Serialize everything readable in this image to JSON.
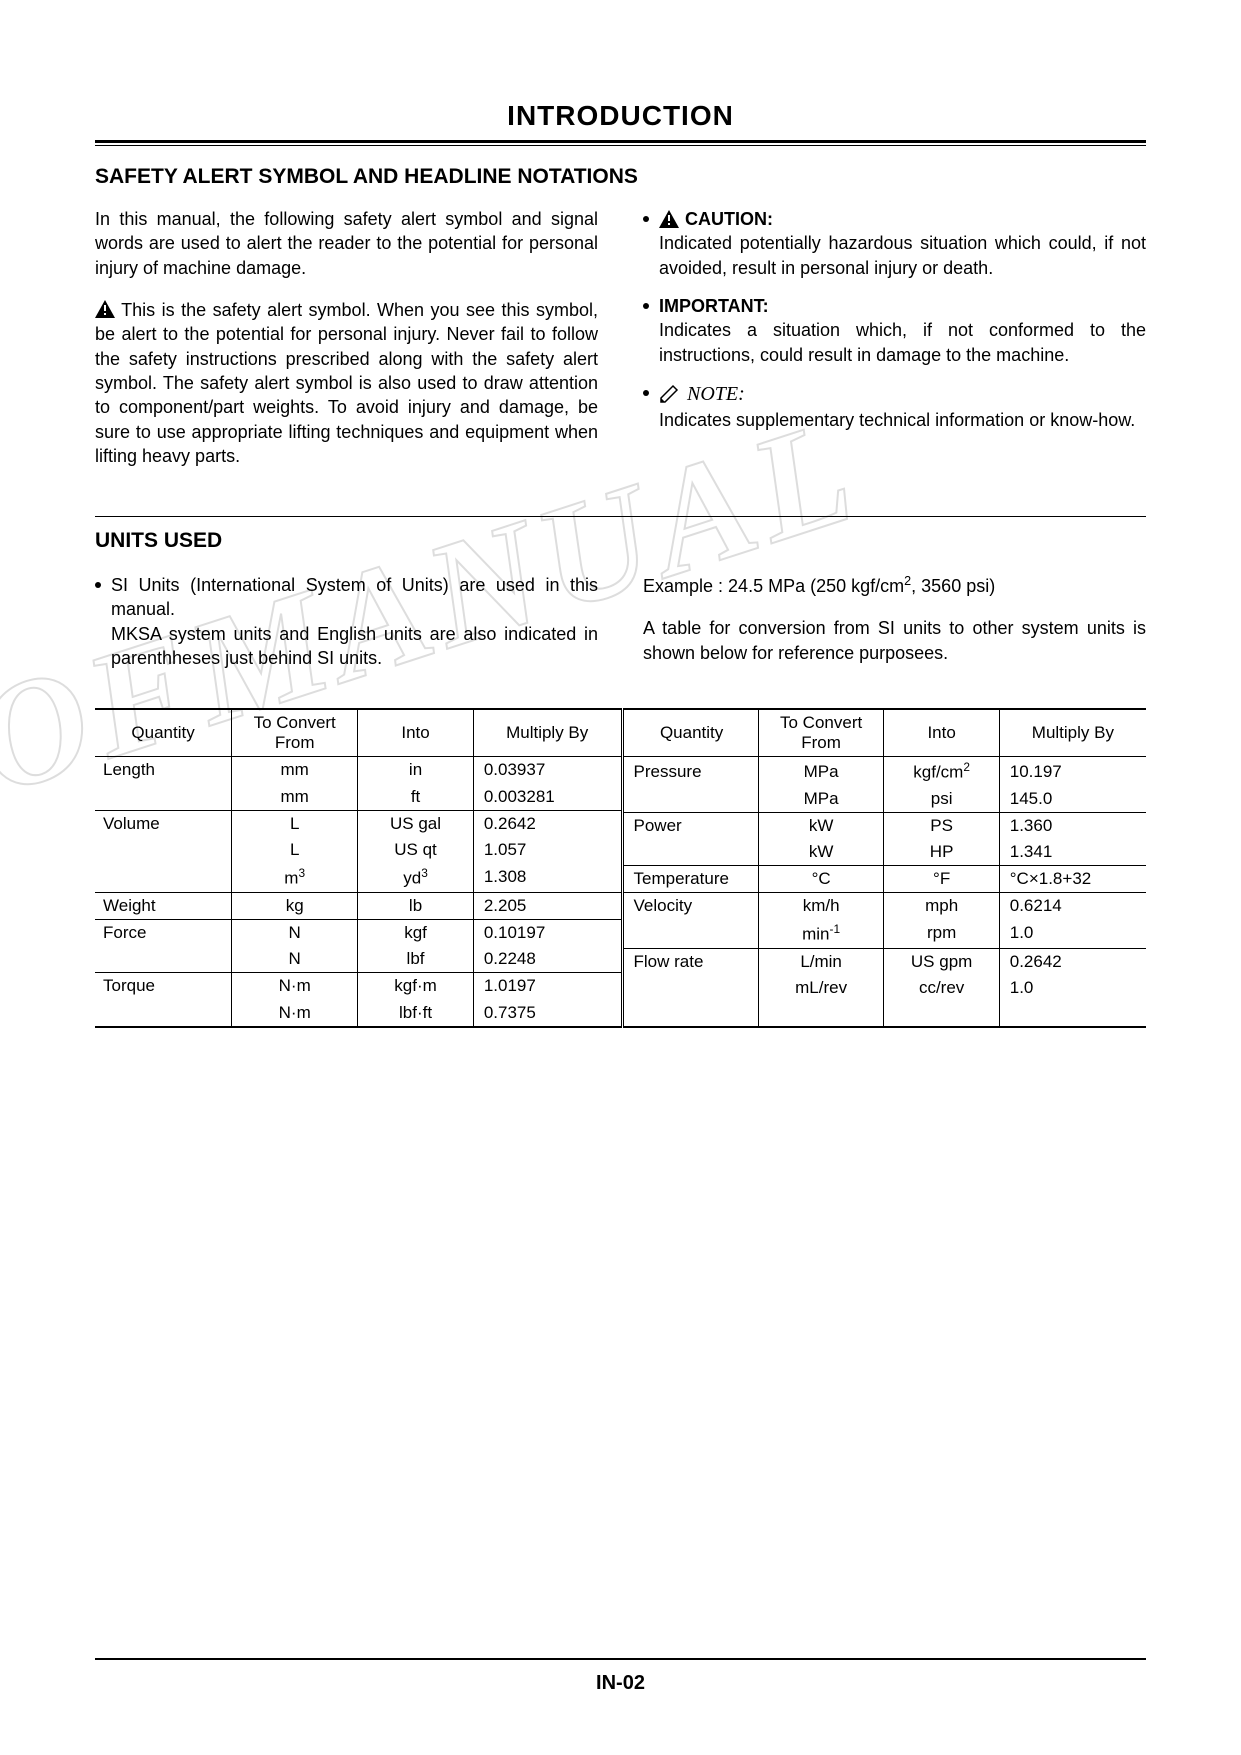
{
  "page": {
    "title": "INTRODUCTION",
    "pageNumber": "IN-02",
    "watermark": "OFMANUAL"
  },
  "safety": {
    "heading": "SAFETY ALERT SYMBOL AND HEADLINE NOTATIONS",
    "intro": "In this manual, the following safety alert symbol and signal words are used to alert the reader to the potential for personal injury of machine damage.",
    "alertPara1": "This is the safety alert symbol. When you see this symbol, be alert to the potential for personal injury.",
    "alertPara2": "Never fail to follow the safety instructions prescribed along with the safety alert symbol.",
    "alertPara3": "The safety alert symbol is also used to draw attention to component/part weights.",
    "alertPara4": "To avoid injury and damage, be sure to use appropriate lifting techniques and equipment when lifting heavy parts.",
    "caution": {
      "label": "CAUTION:",
      "text": "Indicated potentially hazardous situation which could, if not avoided, result in personal injury or death."
    },
    "important": {
      "label": "IMPORTANT:",
      "text": "Indicates a situation which, if not conformed to the instructions, could result in damage to the machine."
    },
    "note": {
      "label": "NOTE:",
      "text": "Indicates supplementary technical information or know-how."
    }
  },
  "units": {
    "heading": "UNITS USED",
    "bullet1": "SI Units (International System of Units) are used in this manual.",
    "bullet1b": "MKSA system units and English units are also indicated in parenthheses just behind SI units.",
    "exampleLabel": "Example : ",
    "exampleValue": "24.5 MPa (250 kgf/cm",
    "exampleSup": "2",
    "exampleTail": ", 3560 psi)",
    "tableIntro": "A table for conversion from SI units to other system units is shown below for reference purposees."
  },
  "table": {
    "headers": {
      "quantity": "Quantity",
      "from": "To Convert From",
      "into": "Into",
      "multiply": "Multiply By"
    },
    "left": [
      {
        "q": "Length",
        "from": "mm",
        "into": "in",
        "mul": "0.03937",
        "group": true
      },
      {
        "q": "",
        "from": "mm",
        "into": "ft",
        "mul": "0.003281",
        "group": false
      },
      {
        "q": "Volume",
        "from": "L",
        "into": "US gal",
        "mul": "0.2642",
        "group": true
      },
      {
        "q": "",
        "from": "L",
        "into": "US qt",
        "mul": "1.057",
        "group": false
      },
      {
        "q": "",
        "from": "m³",
        "into": "yd³",
        "mul": "1.308",
        "group": false,
        "fromSup": "3",
        "fromBase": "m",
        "intoSup": "3",
        "intoBase": "yd"
      },
      {
        "q": "Weight",
        "from": "kg",
        "into": "lb",
        "mul": "2.205",
        "group": true
      },
      {
        "q": "Force",
        "from": "N",
        "into": "kgf",
        "mul": "0.10197",
        "group": true
      },
      {
        "q": "",
        "from": "N",
        "into": "lbf",
        "mul": "0.2248",
        "group": false
      },
      {
        "q": "Torque",
        "from": "N·m",
        "into": "kgf·m",
        "mul": "1.0197",
        "group": true
      },
      {
        "q": "",
        "from": "N·m",
        "into": "lbf·ft",
        "mul": "0.7375",
        "group": false
      }
    ],
    "right": [
      {
        "q": "Pressure",
        "from": "MPa",
        "into": "kgf/cm²",
        "mul": "10.197",
        "group": true,
        "intoBase": "kgf/cm",
        "intoSup": "2"
      },
      {
        "q": "",
        "from": "MPa",
        "into": "psi",
        "mul": "145.0",
        "group": false
      },
      {
        "q": "Power",
        "from": "kW",
        "into": "PS",
        "mul": "1.360",
        "group": true
      },
      {
        "q": "",
        "from": "kW",
        "into": "HP",
        "mul": "1.341",
        "group": false
      },
      {
        "q": "Temperature",
        "from": "°C",
        "into": "°F",
        "mul": "°C×1.8+32",
        "group": true
      },
      {
        "q": "Velocity",
        "from": "km/h",
        "into": "mph",
        "mul": "0.6214",
        "group": true
      },
      {
        "q": "",
        "from": "min⁻¹",
        "into": "rpm",
        "mul": "1.0",
        "group": false,
        "fromBase": "min",
        "fromSup": "-1"
      },
      {
        "q": "Flow rate",
        "from": "L/min",
        "into": "US gpm",
        "mul": "0.2642",
        "group": true
      },
      {
        "q": "",
        "from": "mL/rev",
        "into": "cc/rev",
        "mul": "1.0",
        "group": false
      },
      {
        "q": "",
        "from": "",
        "into": "",
        "mul": "",
        "group": false
      }
    ]
  },
  "colors": {
    "text": "#000000",
    "background": "#ffffff",
    "watermarkStroke": "rgba(120,120,120,0.25)"
  }
}
